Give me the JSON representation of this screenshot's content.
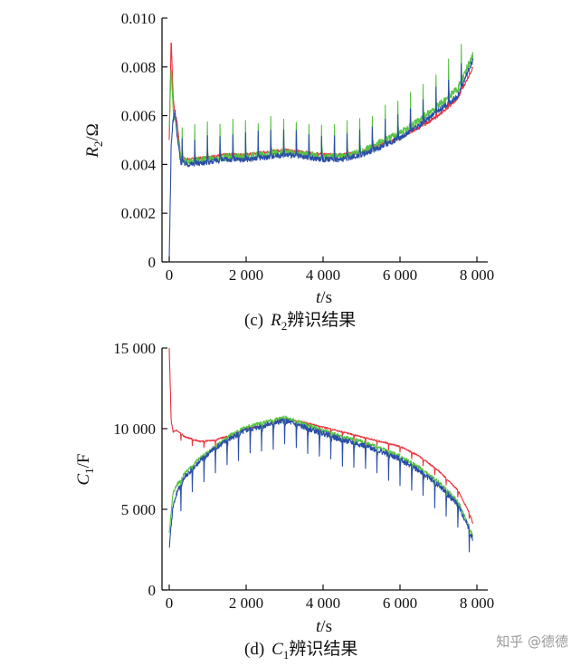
{
  "colors": {
    "red": "#e8323c",
    "green": "#58c244",
    "blue": "#2a4ea8",
    "axis": "#111111"
  },
  "watermark": "知乎 @德德",
  "chart_data": [
    {
      "type": "line",
      "panel": "c",
      "caption_label": "(c)",
      "caption_var": "R",
      "caption_sub": "2",
      "caption_cn": "辨识结果",
      "ylabel_var": "R",
      "ylabel_sub": "2",
      "ylabel_unit": "/Ω",
      "xlabel_var": "t",
      "xlabel_unit": "/s",
      "xlim": [
        -100,
        8000
      ],
      "ylim": [
        0,
        0.01
      ],
      "xticks": [
        0,
        2000,
        4000,
        6000,
        8000
      ],
      "xtick_labels": [
        "0",
        "2 000",
        "4 000",
        "6 000",
        "8 000"
      ],
      "yticks": [
        0,
        0.002,
        0.004,
        0.006,
        0.008,
        0.01
      ],
      "ytick_labels": [
        "0",
        "0.002",
        "0.004",
        "0.006",
        "0.008",
        "0.010"
      ],
      "series": [
        {
          "name": "red",
          "color": "#e8323c",
          "x": [
            0,
            50,
            100,
            150,
            200,
            300,
            500,
            1000,
            1500,
            2000,
            2500,
            3000,
            3500,
            4000,
            4500,
            5000,
            5500,
            6000,
            6500,
            7000,
            7500,
            7900
          ],
          "y": [
            0.005,
            0.0092,
            0.0068,
            0.006,
            0.0058,
            0.0043,
            0.0042,
            0.0043,
            0.0044,
            0.0044,
            0.0045,
            0.0046,
            0.0045,
            0.0044,
            0.0044,
            0.0045,
            0.0048,
            0.0051,
            0.0055,
            0.006,
            0.0067,
            0.008
          ],
          "spike": 0.00055,
          "spike_every": 330
        },
        {
          "name": "green",
          "color": "#58c244",
          "x": [
            0,
            50,
            100,
            150,
            200,
            300,
            500,
            1000,
            1500,
            2000,
            2500,
            3000,
            3500,
            4000,
            4500,
            5000,
            5500,
            6000,
            6500,
            7000,
            7500,
            7900
          ],
          "y": [
            0.0055,
            0.008,
            0.0062,
            0.0058,
            0.0055,
            0.0042,
            0.0041,
            0.0042,
            0.0043,
            0.0043,
            0.0044,
            0.0045,
            0.0044,
            0.0043,
            0.0043,
            0.0045,
            0.0049,
            0.0053,
            0.0058,
            0.0064,
            0.0071,
            0.0085
          ],
          "spike": 0.0014,
          "spike_every": 330
        },
        {
          "name": "blue",
          "color": "#2a4ea8",
          "x": [
            0,
            50,
            100,
            150,
            200,
            300,
            500,
            1000,
            1500,
            2000,
            2500,
            3000,
            3500,
            4000,
            4500,
            5000,
            5500,
            6000,
            6500,
            7000,
            7500,
            7900
          ],
          "y": [
            0.0,
            0.0048,
            0.0058,
            0.0062,
            0.0052,
            0.0041,
            0.004,
            0.0041,
            0.0042,
            0.0042,
            0.0043,
            0.0044,
            0.0043,
            0.0042,
            0.0042,
            0.0044,
            0.0047,
            0.0051,
            0.0056,
            0.0062,
            0.0068,
            0.0083
          ],
          "spike": 0.001,
          "spike_every": 330
        }
      ]
    },
    {
      "type": "line",
      "panel": "d",
      "caption_label": "(d)",
      "caption_var": "C",
      "caption_sub": "1",
      "caption_cn": "辨识结果",
      "ylabel_var": "C",
      "ylabel_sub": "1",
      "ylabel_unit": "/F",
      "xlabel_var": "t",
      "xlabel_unit": "/s",
      "xlim": [
        -100,
        8000
      ],
      "ylim": [
        0,
        15000
      ],
      "xticks": [
        0,
        2000,
        4000,
        6000,
        8000
      ],
      "xtick_labels": [
        "0",
        "2 000",
        "4 000",
        "6 000",
        "8 000"
      ],
      "yticks": [
        0,
        5000,
        10000,
        15000
      ],
      "ytick_labels": [
        "0",
        "5 000",
        "10 000",
        "15 000"
      ],
      "series": [
        {
          "name": "red",
          "color": "#e8323c",
          "x": [
            0,
            50,
            100,
            200,
            400,
            800,
            1200,
            1600,
            2000,
            2500,
            3000,
            3500,
            4000,
            4500,
            5000,
            5500,
            6000,
            6500,
            7000,
            7500,
            7800,
            7900
          ],
          "y": [
            15000,
            10500,
            9800,
            9900,
            9500,
            9200,
            9300,
            9600,
            10000,
            10200,
            10600,
            10400,
            10100,
            9800,
            9500,
            9200,
            8900,
            8300,
            7400,
            6200,
            4800,
            4100
          ],
          "spike": -400,
          "spike_every": 300
        },
        {
          "name": "green",
          "color": "#58c244",
          "x": [
            0,
            50,
            100,
            200,
            400,
            800,
            1200,
            1600,
            2000,
            2500,
            3000,
            3500,
            4000,
            4500,
            5000,
            5500,
            6000,
            6500,
            7000,
            7500,
            7800,
            7900
          ],
          "y": [
            3500,
            4800,
            6000,
            6500,
            7200,
            8200,
            8900,
            9600,
            10100,
            10400,
            10700,
            10300,
            9900,
            9500,
            9200,
            8800,
            8300,
            7600,
            6700,
            5500,
            4000,
            3200
          ],
          "spike": -1000,
          "spike_every": 300
        },
        {
          "name": "blue",
          "color": "#2a4ea8",
          "x": [
            0,
            50,
            100,
            200,
            400,
            800,
            1200,
            1600,
            2000,
            2500,
            3000,
            3500,
            4000,
            4500,
            5000,
            5500,
            6000,
            6500,
            7000,
            7500,
            7800,
            7900
          ],
          "y": [
            2500,
            4000,
            5200,
            6000,
            7000,
            8000,
            8800,
            9400,
            9900,
            10200,
            10500,
            10100,
            9700,
            9300,
            9000,
            8600,
            8100,
            7400,
            6500,
            5300,
            3800,
            3000
          ],
          "spike": -1500,
          "spike_every": 300
        }
      ]
    }
  ]
}
